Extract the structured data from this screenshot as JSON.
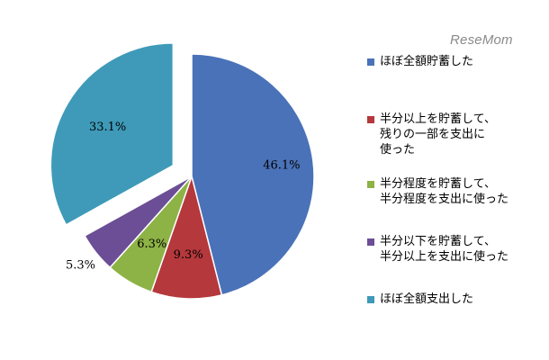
{
  "watermark": "ReseMom",
  "chart_data": {
    "type": "pie",
    "title": "",
    "categories": [
      "ほぼ全額貯蓄した",
      "半分以上を貯蓄して、\n残りの一部を支出に\n使った",
      "半分程度を貯蓄して、\n半分程度を支出に使った",
      "半分以下を貯蓄して、\n半分以上を支出に使った",
      "ほぼ全額支出した"
    ],
    "values": [
      46.1,
      9.3,
      6.3,
      5.3,
      33.1
    ],
    "data_labels": [
      "46.1%",
      "9.3%",
      "6.3%",
      "5.3%",
      "33.1%"
    ],
    "colors": [
      "#4a72b8",
      "#b5383c",
      "#8db246",
      "#6c4e96",
      "#3e9ab8"
    ],
    "exploded": [
      false,
      false,
      false,
      false,
      true
    ],
    "legend_position": "right"
  }
}
